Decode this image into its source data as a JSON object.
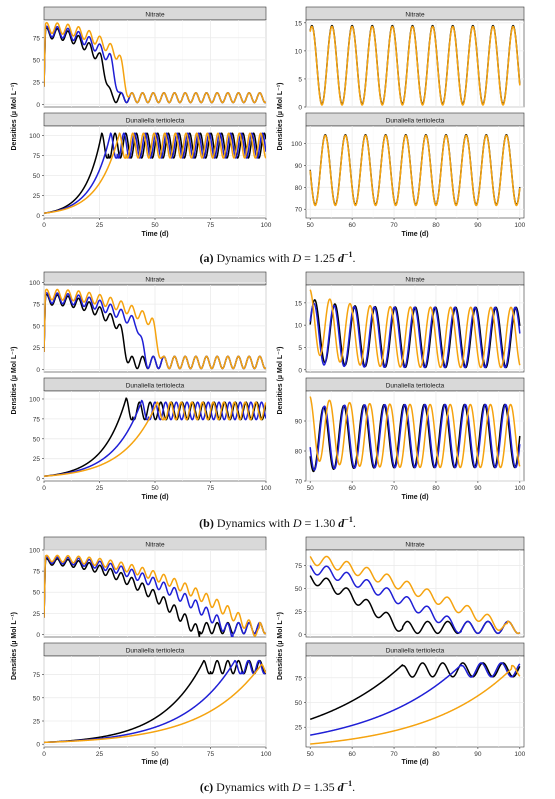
{
  "colors": {
    "black": "#000000",
    "blue": "#1f1fd6",
    "orange": "#f5a30f",
    "strip": "#d9d9d9",
    "grid": "#ebebeb",
    "gridMinor": "#f5f5f5"
  },
  "figure": {
    "y_label": "Densities (µ Mol L⁻¹)",
    "x_label": "Time (d)",
    "nitrate_title": "Nitrate",
    "dunaliella_title": "Dunaliella tertiolecta"
  },
  "chart_data": [
    {
      "id": "a",
      "caption_tag": "(a)",
      "caption_text": " Dynamics with ",
      "caption_eq": "D",
      "caption_val": " = 1.25 ",
      "caption_unit": "d",
      "caption_exp": "−1",
      "caption_end": ".",
      "left": {
        "xticks": [
          "0",
          "25",
          "50",
          "75",
          "100"
        ],
        "xlim": [
          0,
          100
        ],
        "nitrate": {
          "ylim": [
            -3,
            95
          ],
          "yticks": [
            0,
            25,
            50,
            75
          ],
          "series": [
            {
              "color": "black",
              "init": 20,
              "plateau": 80,
              "drop": 25,
              "osc_amp": 6,
              "min": 2,
              "max": 13,
              "period": 4.8
            },
            {
              "color": "blue",
              "init": 20,
              "plateau": 82,
              "drop": 29,
              "osc_amp": 6,
              "min": 2,
              "max": 13,
              "period": 4.8
            },
            {
              "color": "orange",
              "init": 20,
              "plateau": 86,
              "drop": 33,
              "osc_amp": 6,
              "min": 2,
              "max": 13,
              "period": 4.8
            }
          ]
        },
        "dunaliella": {
          "ylim": [
            -3,
            112
          ],
          "yticks": [
            0,
            25,
            50,
            75,
            100
          ],
          "series": [
            {
              "color": "black",
              "start": 3,
              "peak_t": 26,
              "peak": 103,
              "min": 72,
              "max": 103,
              "period": 4.8
            },
            {
              "color": "blue",
              "start": 3,
              "peak_t": 30,
              "peak": 103,
              "min": 72,
              "max": 103,
              "period": 4.8
            },
            {
              "color": "orange",
              "start": 3,
              "peak_t": 34,
              "peak": 103,
              "min": 72,
              "max": 103,
              "period": 4.8
            }
          ]
        }
      },
      "right": {
        "xticks": [
          "50",
          "60",
          "70",
          "80",
          "90",
          "100"
        ],
        "xlim": [
          49,
          101
        ],
        "nitrate": {
          "ylim": [
            0,
            15.5
          ],
          "yticks": [
            0,
            5,
            10,
            15
          ],
          "lo": 0.5,
          "hi": 14.5,
          "period": 4.8
        },
        "dunaliella": {
          "ylim": [
            66,
            108
          ],
          "yticks": [
            70,
            80,
            90,
            100
          ],
          "lo": 72,
          "hi": 104,
          "period": 4.8
        }
      }
    },
    {
      "id": "b",
      "caption_tag": "(b)",
      "caption_text": " Dynamics with ",
      "caption_eq": "D",
      "caption_val": " = 1.30 ",
      "caption_unit": "d",
      "caption_exp": "−1",
      "caption_end": ".",
      "left": {
        "xticks": [
          "0",
          "25",
          "50",
          "75",
          "100"
        ],
        "xlim": [
          0,
          100
        ],
        "nitrate": {
          "ylim": [
            -3,
            97
          ],
          "yticks": [
            0,
            25,
            50,
            75,
            100
          ],
          "series": [
            {
              "color": "black",
              "init": 20,
              "plateau": 80,
              "drop": 33,
              "osc_amp": 6,
              "min": 1,
              "max": 15,
              "period": 4.8
            },
            {
              "color": "blue",
              "init": 20,
              "plateau": 82,
              "drop": 41,
              "osc_amp": 6,
              "min": 1,
              "max": 15,
              "period": 4.8
            },
            {
              "color": "orange",
              "init": 20,
              "plateau": 86,
              "drop": 48,
              "osc_amp": 6,
              "min": 1,
              "max": 15,
              "period": 4.8
            }
          ]
        },
        "dunaliella": {
          "ylim": [
            -3,
            110
          ],
          "yticks": [
            0,
            25,
            50,
            75,
            100
          ],
          "series": [
            {
              "color": "black",
              "start": 3,
              "peak_t": 37,
              "peak": 101,
              "min": 74,
              "max": 96,
              "period": 4.8
            },
            {
              "color": "blue",
              "start": 3,
              "peak_t": 44,
              "peak": 98,
              "min": 74,
              "max": 96,
              "period": 4.8
            },
            {
              "color": "orange",
              "start": 3,
              "peak_t": 51,
              "peak": 96,
              "min": 74,
              "max": 96,
              "period": 4.8
            }
          ]
        }
      },
      "right": {
        "xticks": [
          "50",
          "60",
          "70",
          "80",
          "90",
          "100"
        ],
        "xlim": [
          49,
          101
        ],
        "nitrate": {
          "ylim": [
            -0.5,
            19
          ],
          "yticks": [
            0,
            5,
            10,
            15
          ],
          "lo": 0.5,
          "hi": 14,
          "period": 4.8
        },
        "dunaliella": {
          "ylim": [
            70,
            100
          ],
          "yticks": [
            70,
            80,
            90
          ],
          "lo": 74.5,
          "hi": 95.5,
          "period": 4.8
        }
      }
    },
    {
      "id": "c",
      "caption_tag": "(c)",
      "caption_text": " Dynamics with ",
      "caption_eq": "D",
      "caption_val": " = 1.35 ",
      "caption_unit": "d",
      "caption_exp": "−1",
      "caption_end": ".",
      "left": {
        "xticks": [
          "0",
          "25",
          "50",
          "75",
          "100"
        ],
        "xlim": [
          0,
          100
        ],
        "nitrate": {
          "ylim": [
            -3,
            100
          ],
          "yticks": [
            0,
            25,
            50,
            75,
            100
          ],
          "series": [
            {
              "color": "black",
              "init": 20,
              "plateau": 85,
              "decay_end": 70,
              "min": 1,
              "max": 14,
              "period": 4.8
            },
            {
              "color": "blue",
              "init": 20,
              "plateau": 87,
              "decay_end": 85,
              "min": 1,
              "max": 14,
              "period": 4.8
            },
            {
              "color": "orange",
              "init": 20,
              "plateau": 89,
              "decay_end": 97,
              "min": 1,
              "max": 14,
              "period": 4.8
            }
          ]
        },
        "dunaliella": {
          "ylim": [
            -3,
            95
          ],
          "yticks": [
            0,
            25,
            50,
            75
          ],
          "series": [
            {
              "color": "black",
              "start": 2,
              "peak_t": 72,
              "peak": 90,
              "min": 76,
              "max": 90,
              "period": 4.8
            },
            {
              "color": "blue",
              "start": 2,
              "peak_t": 86,
              "peak": 90,
              "min": 76,
              "max": 90,
              "period": 4.8
            },
            {
              "color": "orange",
              "start": 2,
              "peak_t": 98,
              "peak": 86,
              "min": 76,
              "max": 90,
              "period": 4.8
            }
          ]
        }
      },
      "right": {
        "xticks": [
          "50",
          "60",
          "70",
          "80",
          "90",
          "100"
        ],
        "xlim": [
          49,
          101
        ],
        "nitrate": {
          "ylim": [
            -3,
            92
          ],
          "yticks": [
            0,
            25,
            50,
            75
          ]
        },
        "dunaliella": {
          "ylim": [
            5,
            97
          ],
          "yticks": [
            25,
            50,
            75
          ]
        }
      }
    }
  ]
}
